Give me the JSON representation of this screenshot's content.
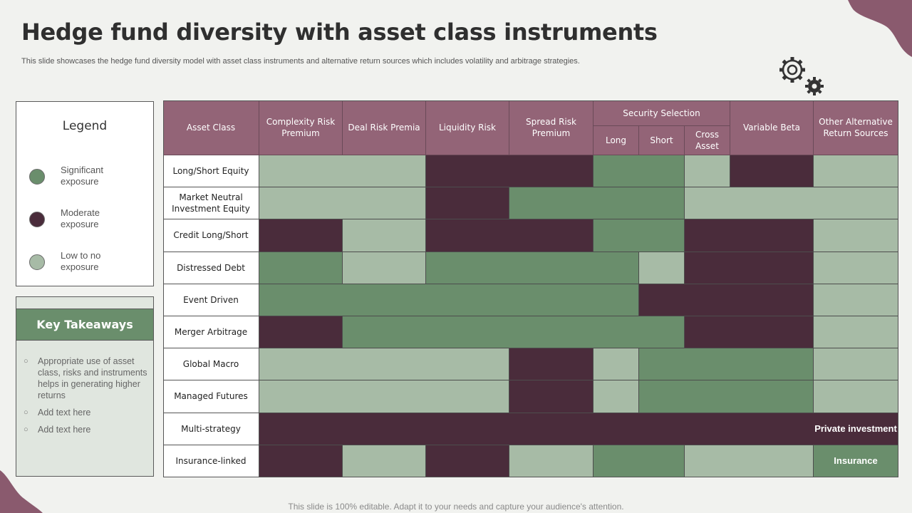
{
  "header": {
    "title": "Hedge fund diversity with asset class instruments",
    "subtitle": "This slide showcases the hedge fund diversity model with asset class instruments and alternative return sources which includes volatility and arbitrage strategies."
  },
  "colors": {
    "significant": "#6a8e6c",
    "moderate": "#4a2c3b",
    "low": "#a7bba6",
    "header": "#936477",
    "brand_blob": "#8a5a6e"
  },
  "legend": {
    "title": "Legend",
    "items": [
      {
        "label": "Significant exposure",
        "level": "significant"
      },
      {
        "label": "Moderate exposure",
        "level": "moderate"
      },
      {
        "label": "Low to no exposure",
        "level": "low"
      }
    ]
  },
  "key_takeaways": {
    "title": "Key Takeaways",
    "items": [
      "Appropriate use of asset class, risks and instruments helps in generating higher returns",
      "Add text here",
      "Add text here"
    ]
  },
  "matrix": {
    "corner_label": "Asset Class",
    "group_label": "Security Selection",
    "columns": [
      "Complexity Risk Premium",
      "Deal Risk Premia",
      "Liquidity Risk",
      "Spread Risk Premium",
      "Long",
      "Short",
      "Cross Asset",
      "Variable Beta",
      "Other Alternative Return Sources"
    ],
    "rows": [
      {
        "label": "Long/Short  Equity",
        "cells": [
          "low",
          "low",
          "moderate",
          "moderate",
          "significant",
          "significant",
          "low",
          "moderate",
          "low"
        ]
      },
      {
        "label": "Market Neutral Investment Equity",
        "cells": [
          "low",
          "low",
          "moderate",
          "significant",
          "significant",
          "significant",
          "low",
          "low",
          "low"
        ]
      },
      {
        "label": "Credit Long/Short",
        "cells": [
          "moderate",
          "low",
          "moderate",
          "moderate",
          "significant",
          "significant",
          "moderate",
          "moderate",
          "low"
        ]
      },
      {
        "label": "Distressed  Debt",
        "cells": [
          "significant",
          "low",
          "significant",
          "significant",
          "significant",
          "low",
          "moderate",
          "moderate",
          "low"
        ]
      },
      {
        "label": "Event Driven",
        "cells": [
          "significant",
          "significant",
          "significant",
          "significant",
          "significant",
          "moderate",
          "moderate",
          "moderate",
          "low"
        ]
      },
      {
        "label": "Merger Arbitrage",
        "cells": [
          "moderate",
          "significant",
          "significant",
          "significant",
          "significant",
          "significant",
          "moderate",
          "moderate",
          "low"
        ]
      },
      {
        "label": "Global Macro",
        "cells": [
          "low",
          "low",
          "low",
          "moderate",
          "low",
          "significant",
          "significant",
          "significant",
          "low"
        ]
      },
      {
        "label": "Managed Futures",
        "cells": [
          "low",
          "low",
          "low",
          "moderate",
          "low",
          "significant",
          "significant",
          "significant",
          "low"
        ]
      },
      {
        "label": "Multi-strategy",
        "cells": [
          "moderate",
          "moderate",
          "moderate",
          "moderate",
          "moderate",
          "moderate",
          "moderate",
          "moderate",
          "moderate"
        ],
        "last_text": "Private investment"
      },
      {
        "label": "Insurance-linked",
        "cells": [
          "moderate",
          "low",
          "moderate",
          "low",
          "significant",
          "significant",
          "low",
          "low",
          "significant"
        ],
        "last_text": "Insurance"
      }
    ]
  },
  "footer": "This slide is 100% editable. Adapt it to your needs and capture your audience's attention."
}
